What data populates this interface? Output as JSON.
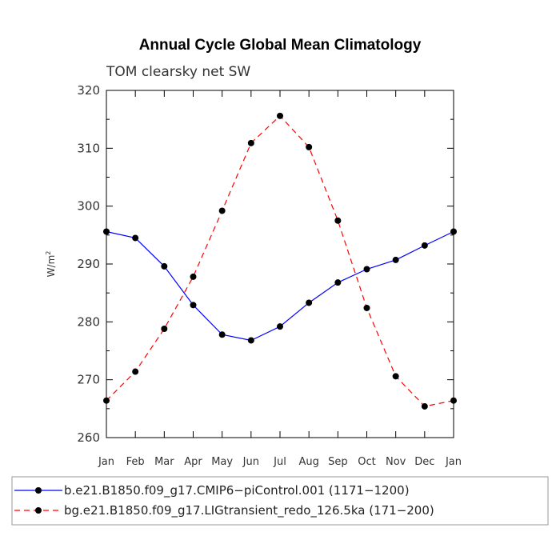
{
  "chart_data": {
    "type": "line",
    "title": "Annual Cycle Global Mean Climatology",
    "subtitle": "TOM clearsky net SW",
    "ylabel": "W/m",
    "ylabel_sup": "2",
    "xlabel": "",
    "categories": [
      "Jan",
      "Feb",
      "Mar",
      "Apr",
      "May",
      "Jun",
      "Jul",
      "Aug",
      "Sep",
      "Oct",
      "Nov",
      "Dec",
      "Jan"
    ],
    "ylim": [
      260,
      320
    ],
    "yticks": [
      "260",
      "270",
      "280",
      "290",
      "300",
      "310",
      "320"
    ],
    "grid": false,
    "legend_position": "bottom",
    "series": [
      {
        "name": "b.e21.B1850.f09_g17.CMIP6−piControl.001 (1171−1200)",
        "color": "#0000ff",
        "dash": "solid",
        "marker": "dot",
        "values": [
          295.6,
          294.5,
          289.6,
          282.9,
          277.8,
          276.8,
          279.2,
          283.3,
          286.8,
          289.1,
          290.7,
          293.2,
          295.6
        ]
      },
      {
        "name": "bg.e21.B1850.f09_g17.LIGtransient_redo_126.5ka (171−200)",
        "color": "#ff0000",
        "dash": "dashed",
        "marker": "dot",
        "values": [
          266.4,
          271.4,
          278.8,
          287.8,
          299.2,
          310.9,
          315.6,
          310.2,
          297.5,
          282.4,
          270.6,
          265.4,
          266.4
        ]
      }
    ]
  }
}
